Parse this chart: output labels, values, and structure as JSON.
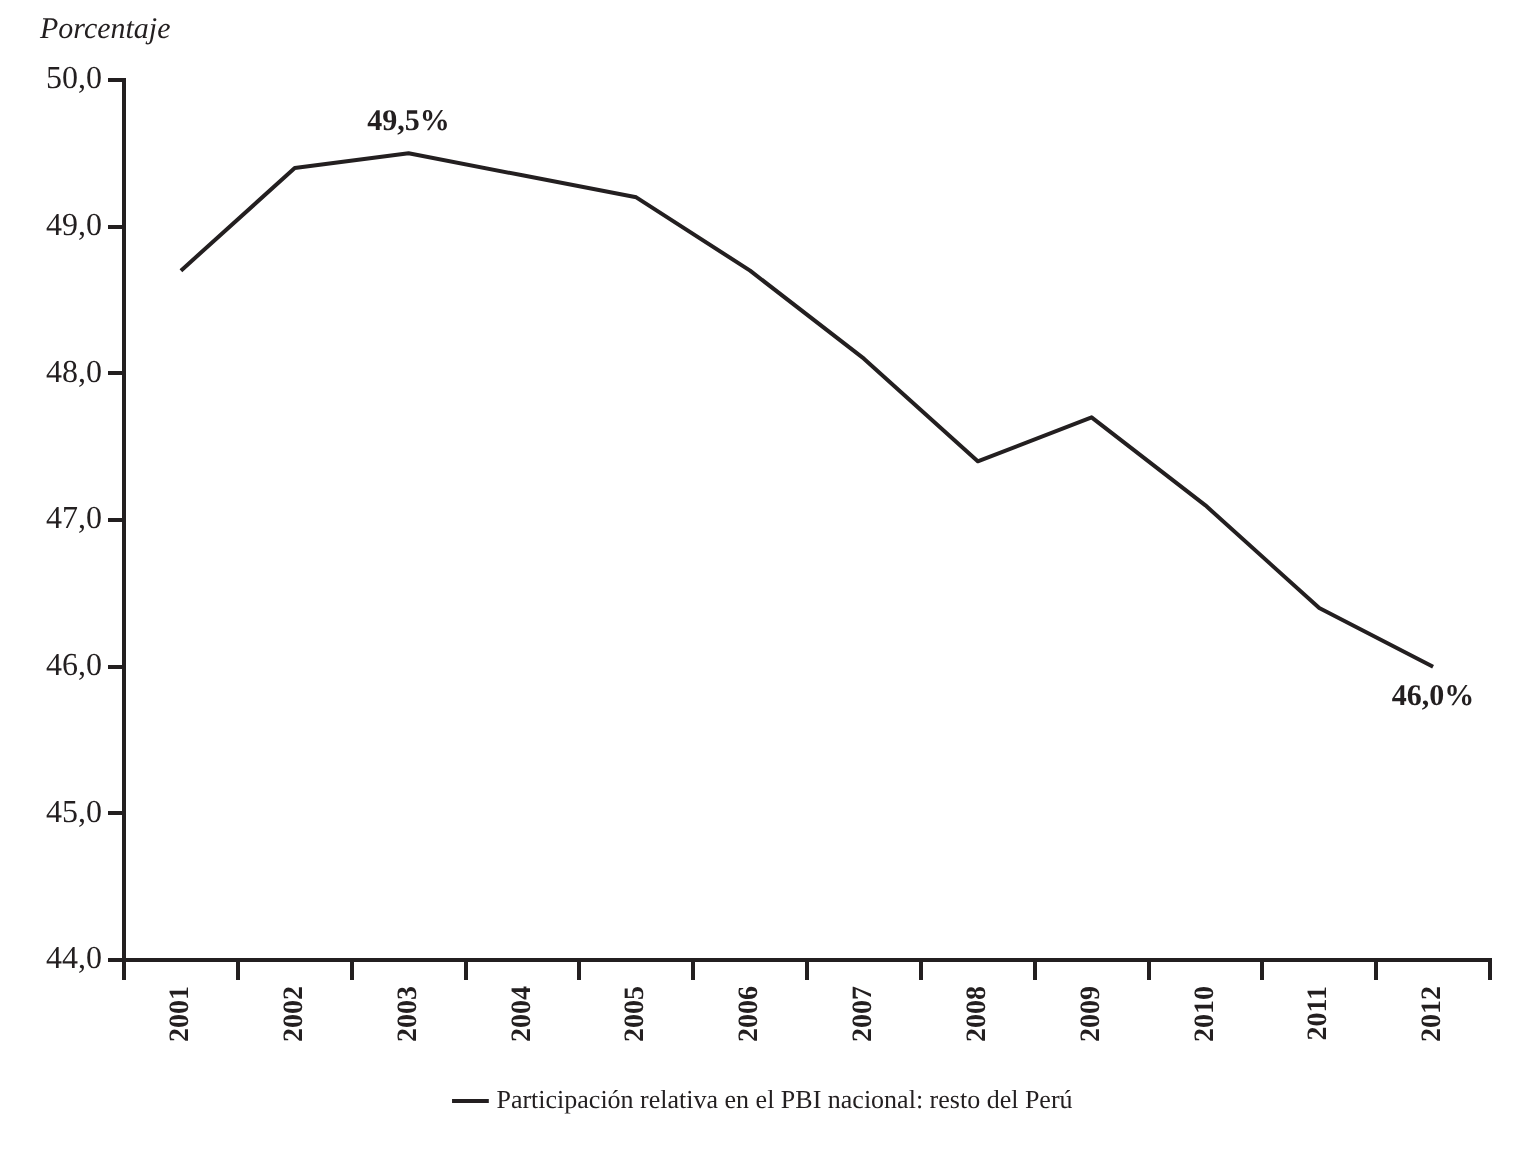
{
  "chart_data": {
    "type": "line",
    "ylabel": "Porcentaje",
    "categories": [
      "2001",
      "2002",
      "2003",
      "2004",
      "2005",
      "2006",
      "2007",
      "2008",
      "2009",
      "2010",
      "2011",
      "2012"
    ],
    "series": [
      {
        "name": "Participación relativa en el PBI nacional: resto del Perú",
        "color": "#231f20",
        "values": [
          48.7,
          49.4,
          49.5,
          49.35,
          49.2,
          48.7,
          48.1,
          47.4,
          47.7,
          47.1,
          46.4,
          46.0
        ],
        "value_labels": [
          null,
          null,
          "49,5%",
          null,
          null,
          null,
          null,
          null,
          null,
          null,
          null,
          "46,0%"
        ]
      }
    ],
    "ylim": [
      44,
      50
    ],
    "yticks": [
      {
        "value": 44,
        "label": "44,0"
      },
      {
        "value": 45,
        "label": "45,0"
      },
      {
        "value": 46,
        "label": "46,0"
      },
      {
        "value": 47,
        "label": "47,0"
      },
      {
        "value": 48,
        "label": "48,0"
      },
      {
        "value": 49,
        "label": "49,0"
      },
      {
        "value": 50,
        "label": "50,0"
      }
    ],
    "grid": false,
    "legend": "bottom",
    "marker": "none",
    "line_style": "solid"
  }
}
